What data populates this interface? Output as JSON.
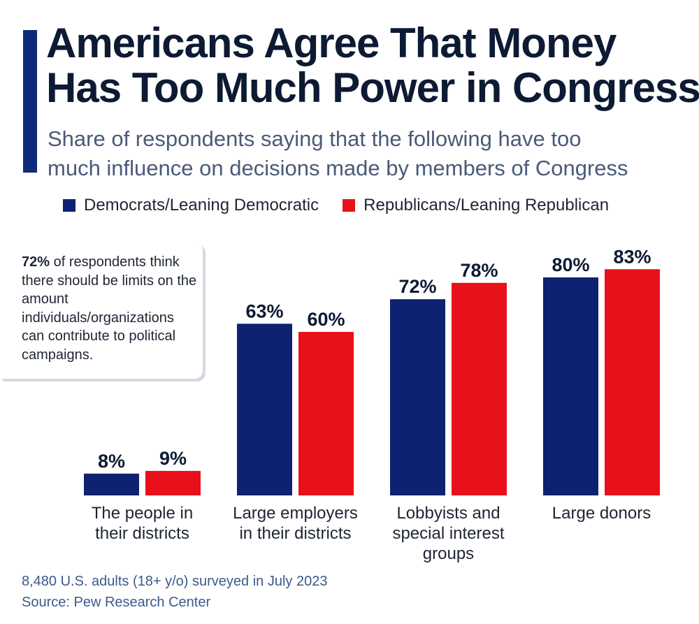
{
  "header": {
    "title_lines": [
      "Americans Agree That Money",
      "Has Too Much Power in Congress"
    ],
    "subtitle_lines": [
      "Share of respondents saying that the following have too",
      "much influence on decisions made by members of Congress"
    ]
  },
  "colors": {
    "accent": "#0f2a7a",
    "democrat": "#0f2272",
    "republican": "#e8101a"
  },
  "note": {
    "highlight": "72%",
    "text": " of respondents think there should be limits on the amount individuals/organizations can contribute to political campaigns."
  },
  "footer": {
    "survey": "8,480 U.S. adults (18+ y/o) surveyed in July 2023",
    "source": "Source: Pew Research Center"
  },
  "chart_data": {
    "type": "bar",
    "title": "Americans Agree That Money Has Too Much Power in Congress",
    "subtitle": "Share of respondents saying that the following have too much influence on decisions made by members of Congress",
    "xlabel": "",
    "ylabel": "",
    "ylim": [
      0,
      100
    ],
    "grid": false,
    "legend_position": "top-left",
    "categories": [
      [
        "The people in",
        "their districts"
      ],
      [
        "Large employers",
        "in their districts"
      ],
      [
        "Lobbyists and",
        "special interest",
        "groups"
      ],
      [
        "Large donors"
      ]
    ],
    "series": [
      {
        "name": "Democrats/Leaning Democratic",
        "values": [
          8,
          63,
          72,
          80
        ],
        "labels": [
          "8%",
          "63%",
          "72%",
          "80%"
        ]
      },
      {
        "name": "Republicans/Leaning Republican",
        "values": [
          9,
          60,
          78,
          83
        ],
        "labels": [
          "9%",
          "60%",
          "78%",
          "83%"
        ]
      }
    ]
  }
}
